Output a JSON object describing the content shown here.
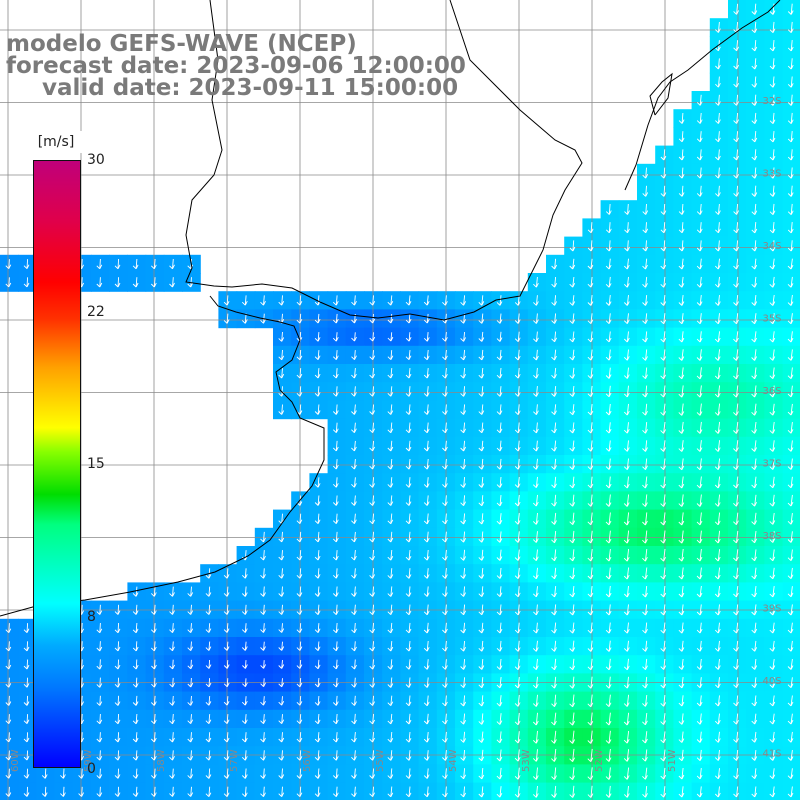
{
  "header": {
    "model": "modelo GEFS-WAVE (NCEP)",
    "forecast": "forecast date: 2023-09-06 12:00:00",
    "valid": "valid date: 2023-09-11 15:00:00"
  },
  "colorbar": {
    "unit": "[m/s]",
    "ticks": [
      "30",
      "22",
      "15",
      "8",
      "0"
    ],
    "colors": [
      "#0000ff",
      "#0077ff",
      "#00aaff",
      "#00ffff",
      "#00ff80",
      "#00dd00",
      "#88ff00",
      "#ffff00",
      "#ffa000",
      "#ff3000",
      "#ff0000",
      "#c0007a"
    ]
  },
  "lat_labels": [
    "32S",
    "33S",
    "34S",
    "35S",
    "36S",
    "37S",
    "38S",
    "39S",
    "40S",
    "41S"
  ],
  "lon_labels": [
    "60W",
    "59W",
    "58W",
    "57W",
    "56W",
    "55W",
    "54W",
    "53W",
    "52W",
    "51W"
  ]
}
